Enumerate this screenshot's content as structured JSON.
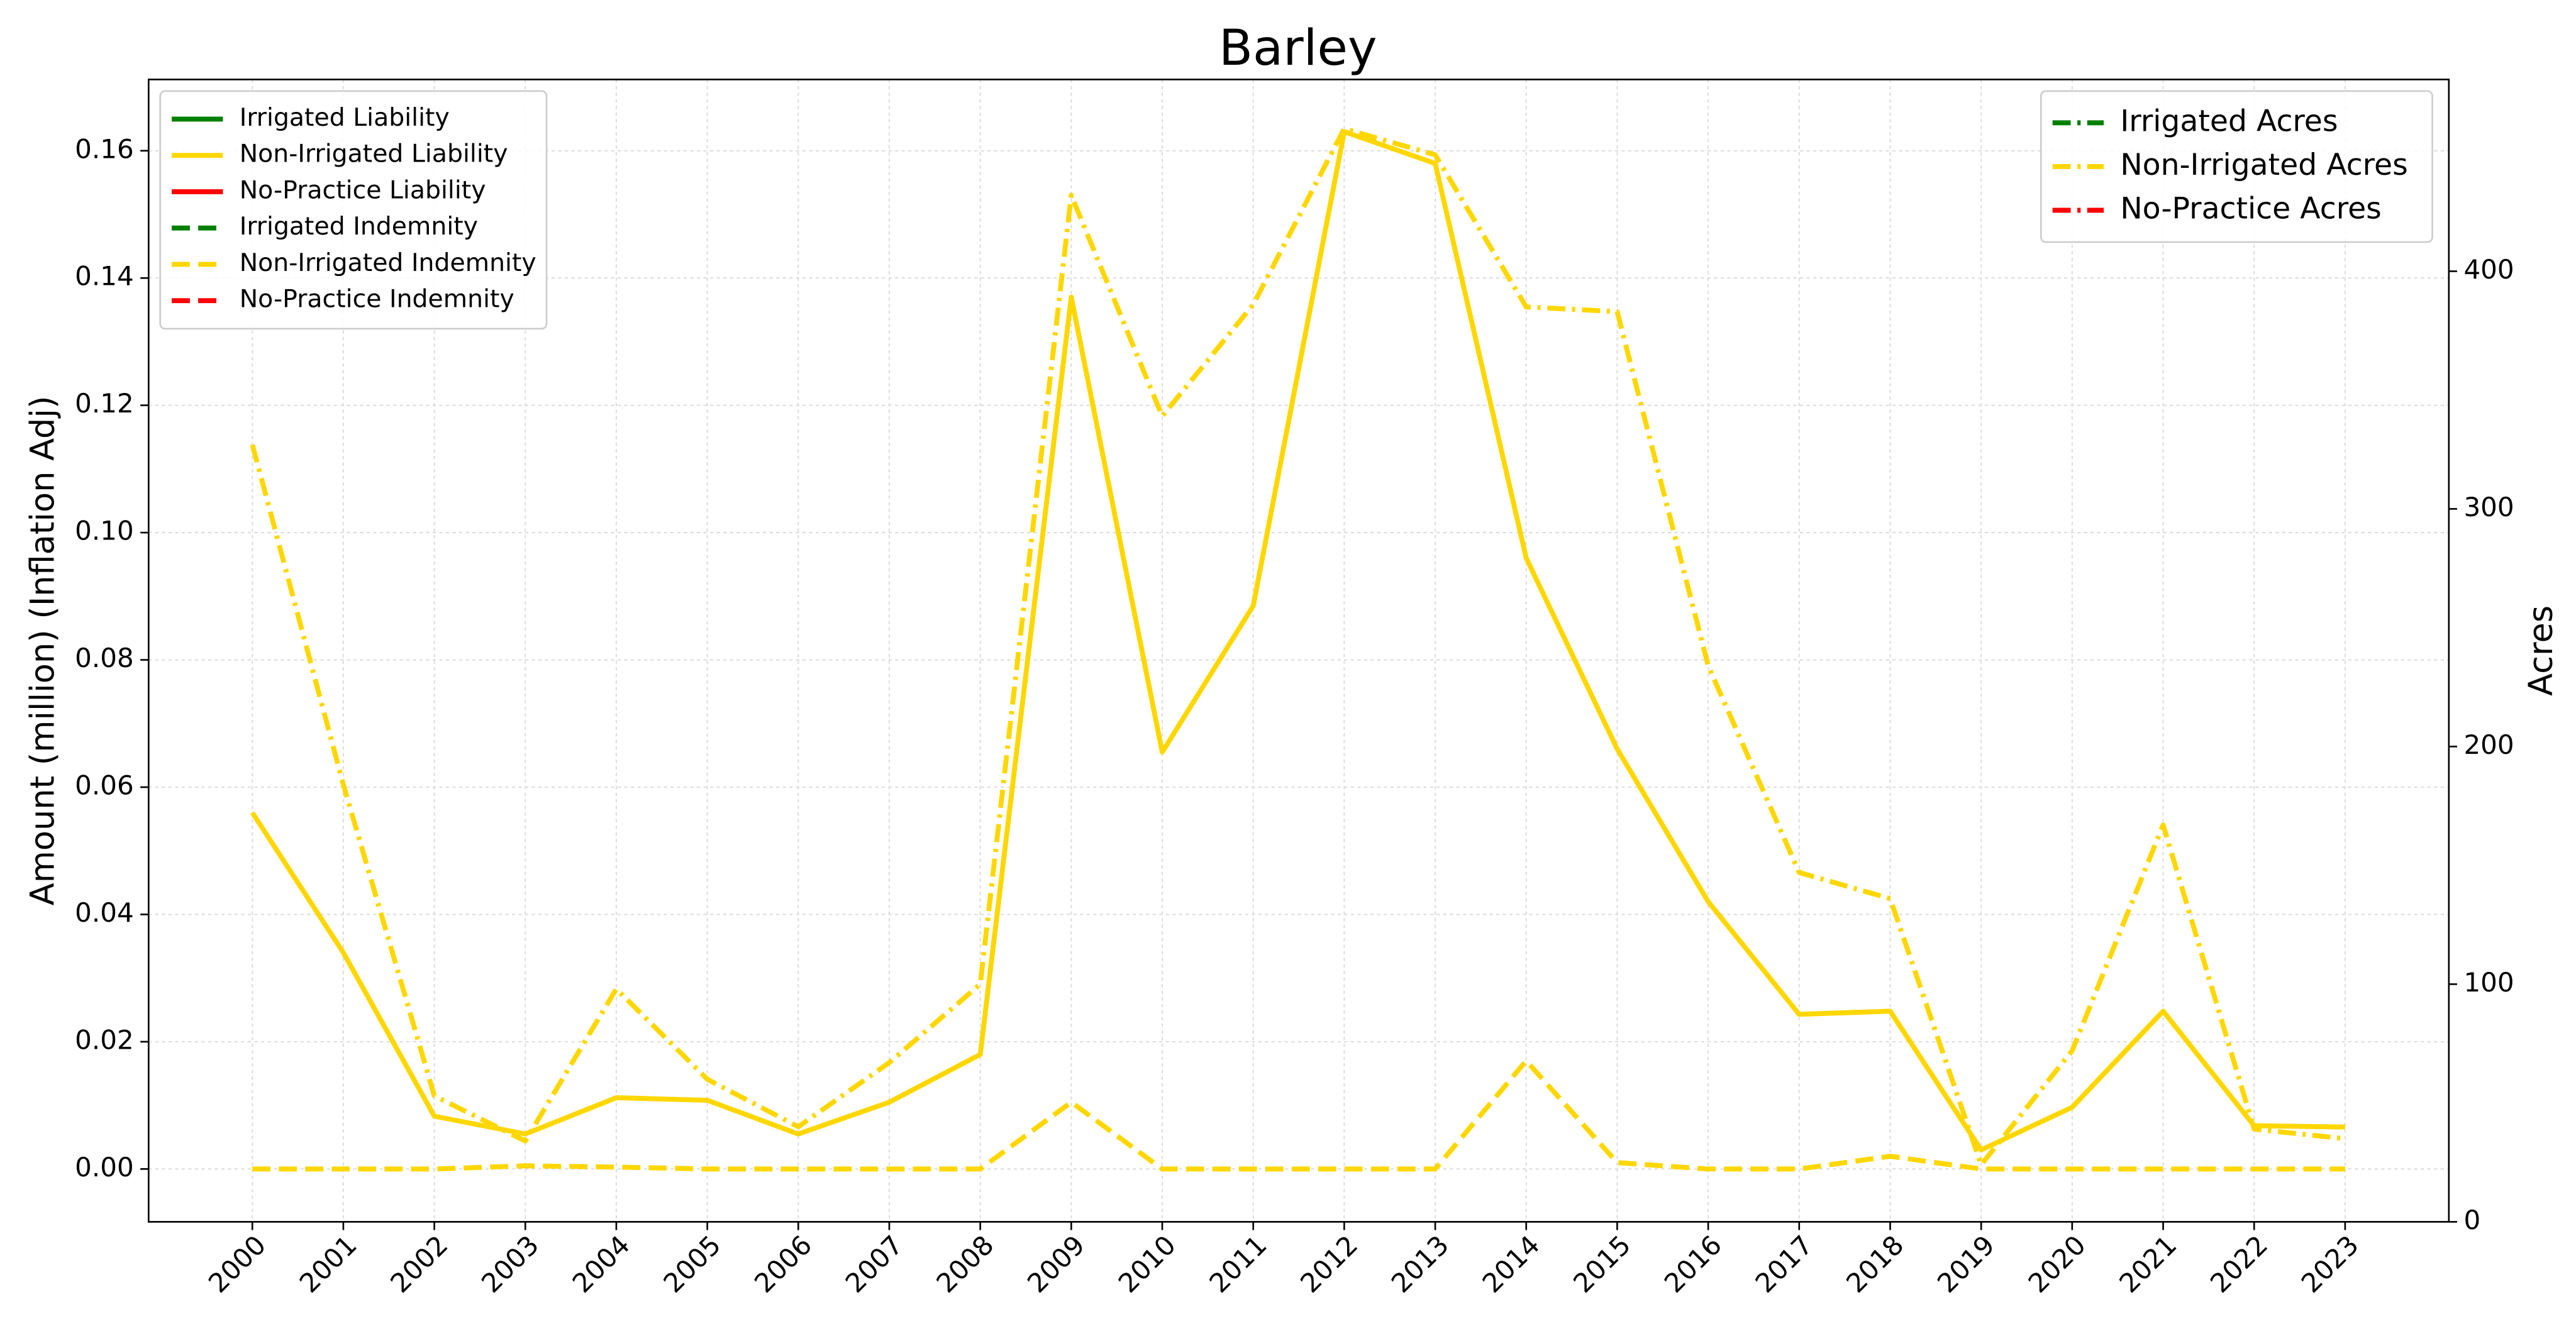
{
  "chart_data": {
    "type": "line",
    "title": "Barley",
    "y_label": "Amount (million) (Inflation Adj)",
    "y2_label": "Acres",
    "x": [
      2000,
      2001,
      2002,
      2003,
      2004,
      2005,
      2006,
      2007,
      2008,
      2009,
      2010,
      2011,
      2012,
      2013,
      2014,
      2015,
      2016,
      2017,
      2018,
      2019,
      2020,
      2021,
      2022,
      2023
    ],
    "xlim": [
      1998.86,
      2024.14
    ],
    "xticks": [
      2000,
      2001,
      2002,
      2003,
      2004,
      2005,
      2006,
      2007,
      2008,
      2009,
      2010,
      2011,
      2012,
      2013,
      2014,
      2015,
      2016,
      2017,
      2018,
      2019,
      2020,
      2021,
      2022,
      2023
    ],
    "ylim": [
      -0.0083,
      0.1712
    ],
    "yticks": [
      {
        "value": 0,
        "label": "0.00"
      },
      0.02,
      0.04,
      0.06,
      0.08,
      {
        "value": 0.1,
        "label": "0.10"
      },
      0.12,
      0.14,
      0.16
    ],
    "y2lim": [
      0,
      480.7
    ],
    "y2ticks": [
      0,
      100,
      200,
      300,
      400
    ],
    "grid": true,
    "legend": "upper left",
    "legend2": "upper right",
    "series": [
      {
        "name": "Irrigated Liability",
        "color": "#008000",
        "style": "solid",
        "values": [
          null,
          null,
          null,
          null,
          null,
          null,
          null,
          null,
          null,
          null,
          null,
          null,
          null,
          null,
          null,
          null,
          null,
          null,
          null,
          null,
          null,
          null,
          null,
          null
        ]
      },
      {
        "name": "Non-Irrigated Liability",
        "color": "#ffd700",
        "style": "solid",
        "values": [
          0.056,
          0.034,
          0.0083,
          0.0055,
          0.0112,
          0.0108,
          0.0055,
          0.0105,
          0.018,
          0.137,
          0.0655,
          0.0885,
          0.163,
          0.158,
          0.096,
          0.066,
          0.042,
          0.0243,
          0.0248,
          0.003,
          0.0097,
          0.0248,
          0.0068,
          0.0066
        ]
      },
      {
        "name": "No-Practice Liability",
        "color": "#ff0000",
        "style": "solid",
        "values": [
          null,
          null,
          null,
          null,
          null,
          null,
          null,
          null,
          null,
          null,
          null,
          null,
          null,
          null,
          null,
          null,
          null,
          null,
          null,
          null,
          null,
          null,
          null,
          null
        ]
      },
      {
        "name": "Irrigated Indemnity",
        "color": "#008000",
        "style": "dashed",
        "values": [
          null,
          null,
          null,
          null,
          null,
          null,
          null,
          null,
          null,
          null,
          null,
          null,
          null,
          null,
          null,
          null,
          null,
          null,
          null,
          null,
          null,
          null,
          null,
          null
        ]
      },
      {
        "name": "Non-Irrigated Indemnity",
        "color": "#ffd700",
        "style": "dashed",
        "values": [
          0,
          0,
          0,
          0.0005,
          0.0003,
          0,
          0,
          0,
          0,
          0.0105,
          0,
          0,
          0,
          0,
          0.017,
          0.001,
          0,
          0,
          0.002,
          0,
          0,
          0,
          0,
          0
        ]
      },
      {
        "name": "No-Practice Indemnity",
        "color": "#ff0000",
        "style": "dashed",
        "values": [
          null,
          null,
          null,
          null,
          null,
          null,
          null,
          null,
          null,
          null,
          null,
          null,
          null,
          null,
          null,
          null,
          null,
          null,
          null,
          null,
          null,
          null,
          null,
          null
        ]
      },
      {
        "name": "Irrigated Acres",
        "color": "#008000",
        "style": "dashdot",
        "axis": "y2",
        "values": [
          null,
          null,
          null,
          null,
          null,
          null,
          null,
          null,
          null,
          null,
          null,
          null,
          null,
          null,
          null,
          null,
          null,
          null,
          null,
          null,
          null,
          null,
          null,
          null
        ]
      },
      {
        "name": "Non-Irrigated Acres",
        "color": "#ffd700",
        "style": "dashdot",
        "axis": "y2",
        "values": [
          327,
          184,
          53,
          34,
          98,
          60,
          40,
          67,
          100,
          432,
          339,
          386,
          460,
          449,
          385,
          383,
          234,
          147,
          136,
          24,
          72,
          167,
          39,
          35
        ]
      },
      {
        "name": "No-Practice Acres",
        "color": "#ff0000",
        "style": "dashdot",
        "axis": "y2",
        "values": [
          null,
          null,
          null,
          null,
          null,
          null,
          null,
          null,
          null,
          null,
          null,
          null,
          null,
          null,
          null,
          null,
          null,
          null,
          null,
          null,
          null,
          null,
          null,
          null
        ]
      }
    ]
  }
}
